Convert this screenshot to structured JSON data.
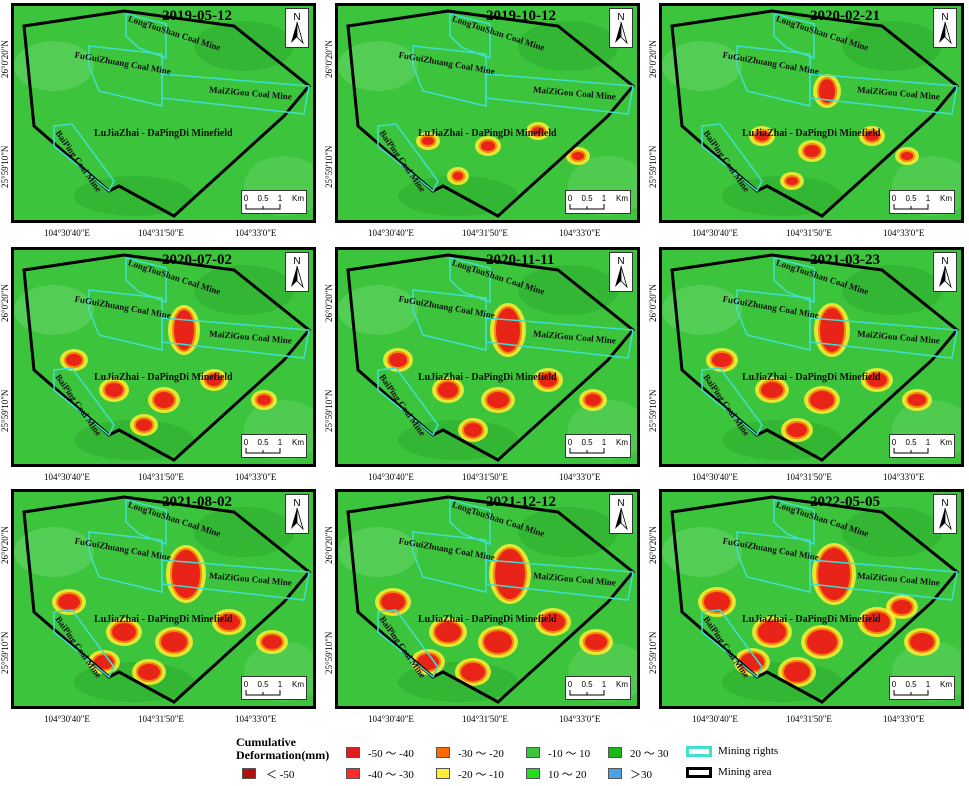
{
  "colors": {
    "lt_-50": "#b01010",
    "-50_-40": "#e51a1a",
    "-40_-30": "#ff2a2a",
    "-30_-20": "#ff6a00",
    "-20_-10": "#ffee33",
    "-10_10": "#3cc43c",
    "10_20": "#22dd22",
    "20_30": "#18b818",
    "gt_30": "#4aa3e8",
    "mining_rights": "#40e0d0",
    "mining_area": "#000000"
  },
  "panels": [
    {
      "date": "2019-05-12"
    },
    {
      "date": "2019-10-12"
    },
    {
      "date": "2020-02-21"
    },
    {
      "date": "2020-07-02"
    },
    {
      "date": "2020-11-11"
    },
    {
      "date": "2021-03-23"
    },
    {
      "date": "2021-08-02"
    },
    {
      "date": "2021-12-12"
    },
    {
      "date": "2022-05-05"
    }
  ],
  "labels": {
    "longtoushan": "LongTouShan Coal Mine",
    "fuguizhuang": "FuGuiZhuang Coal Mine",
    "maizigou": "MaiZiGou Coal Mine",
    "baiping": "BaiPing Coal Mine",
    "minefield": "LuJiaZhai - DaPingDi Minefield"
  },
  "north": "N",
  "scale": {
    "t0": "0",
    "t1": "0.5",
    "t2": "1",
    "unit": "Km"
  },
  "axes": {
    "x1": "104°30'40\"E",
    "x2": "104°31'50\"E",
    "x3": "104°33'0\"E",
    "y1": "26°0'20\"N",
    "y2": "25°59'10\"N"
  },
  "legend": {
    "title_line1": "Cumulative",
    "title_line2": "Deformation(mm)",
    "items": [
      {
        "label": "＜ -50"
      },
      {
        "label": "-50 ～ -40"
      },
      {
        "label": "-40 ～ -30"
      },
      {
        "label": "-30 ～ -20"
      },
      {
        "label": "-20 ～ -10"
      },
      {
        "label": "-10 ～ 10"
      },
      {
        "label": "10 ～ 20"
      },
      {
        "label": "20 ～ 30"
      },
      {
        "label": "＞30"
      }
    ],
    "mining_rights": "Mining rights",
    "mining_area": "Mining area"
  }
}
